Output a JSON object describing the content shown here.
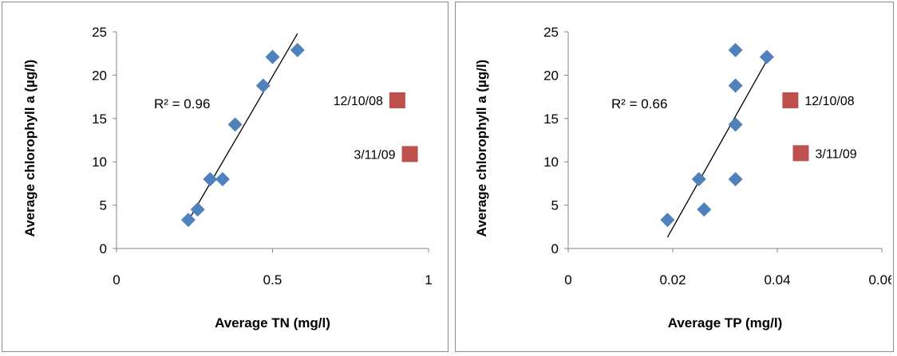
{
  "chart_data": [
    {
      "type": "scatter",
      "title": "",
      "xlabel": "Average TN  (mg/l)",
      "ylabel": "Average chlorophyll  a (µg/l)",
      "xlim": [
        0,
        1
      ],
      "ylim": [
        0,
        25
      ],
      "x_ticks": [
        "0",
        "0.5",
        "1"
      ],
      "y_ticks": [
        "0",
        "5",
        "10",
        "15",
        "20",
        "25"
      ],
      "grid": false,
      "series": [
        {
          "marker": "diamond",
          "color": "#4f81bd",
          "points": [
            {
              "x": 0.23,
              "y": 3.3
            },
            {
              "x": 0.26,
              "y": 4.5
            },
            {
              "x": 0.3,
              "y": 8.0
            },
            {
              "x": 0.34,
              "y": 8.0
            },
            {
              "x": 0.38,
              "y": 14.3
            },
            {
              "x": 0.47,
              "y": 18.8
            },
            {
              "x": 0.5,
              "y": 22.1
            },
            {
              "x": 0.58,
              "y": 22.9
            }
          ]
        },
        {
          "marker": "square",
          "color": "#c0504d",
          "points": [
            {
              "x": 0.9,
              "y": 17.1,
              "label": "12/10/08"
            },
            {
              "x": 0.94,
              "y": 10.9,
              "label": "3/11/09"
            }
          ]
        }
      ],
      "trendline": {
        "x": [
          0.23,
          0.58
        ],
        "y": [
          3.2,
          24.8
        ]
      },
      "annotation": "R² = 0.96"
    },
    {
      "type": "scatter",
      "title": "",
      "xlabel": "Average TP  (mg/l)",
      "ylabel": "Average chlorophyll  a (µg/l)",
      "xlim": [
        0,
        0.06
      ],
      "ylim": [
        0,
        25
      ],
      "x_ticks": [
        "0",
        "0.02",
        "0.04",
        "0.06"
      ],
      "y_ticks": [
        "0",
        "5",
        "10",
        "15",
        "20",
        "25"
      ],
      "grid": false,
      "series": [
        {
          "marker": "diamond",
          "color": "#4f81bd",
          "points": [
            {
              "x": 0.019,
              "y": 3.3
            },
            {
              "x": 0.025,
              "y": 8.0
            },
            {
              "x": 0.026,
              "y": 4.5
            },
            {
              "x": 0.032,
              "y": 8.0
            },
            {
              "x": 0.032,
              "y": 14.3
            },
            {
              "x": 0.032,
              "y": 18.8
            },
            {
              "x": 0.032,
              "y": 22.9
            },
            {
              "x": 0.038,
              "y": 22.1
            }
          ]
        },
        {
          "marker": "square",
          "color": "#c0504d",
          "points": [
            {
              "x": 0.0425,
              "y": 17.1,
              "label": "12/10/08"
            },
            {
              "x": 0.0445,
              "y": 11.0,
              "label": "3/11/09"
            }
          ]
        }
      ],
      "trendline": {
        "x": [
          0.019,
          0.038
        ],
        "y": [
          1.3,
          21.7
        ]
      },
      "annotation": "R² = 0.66"
    }
  ]
}
